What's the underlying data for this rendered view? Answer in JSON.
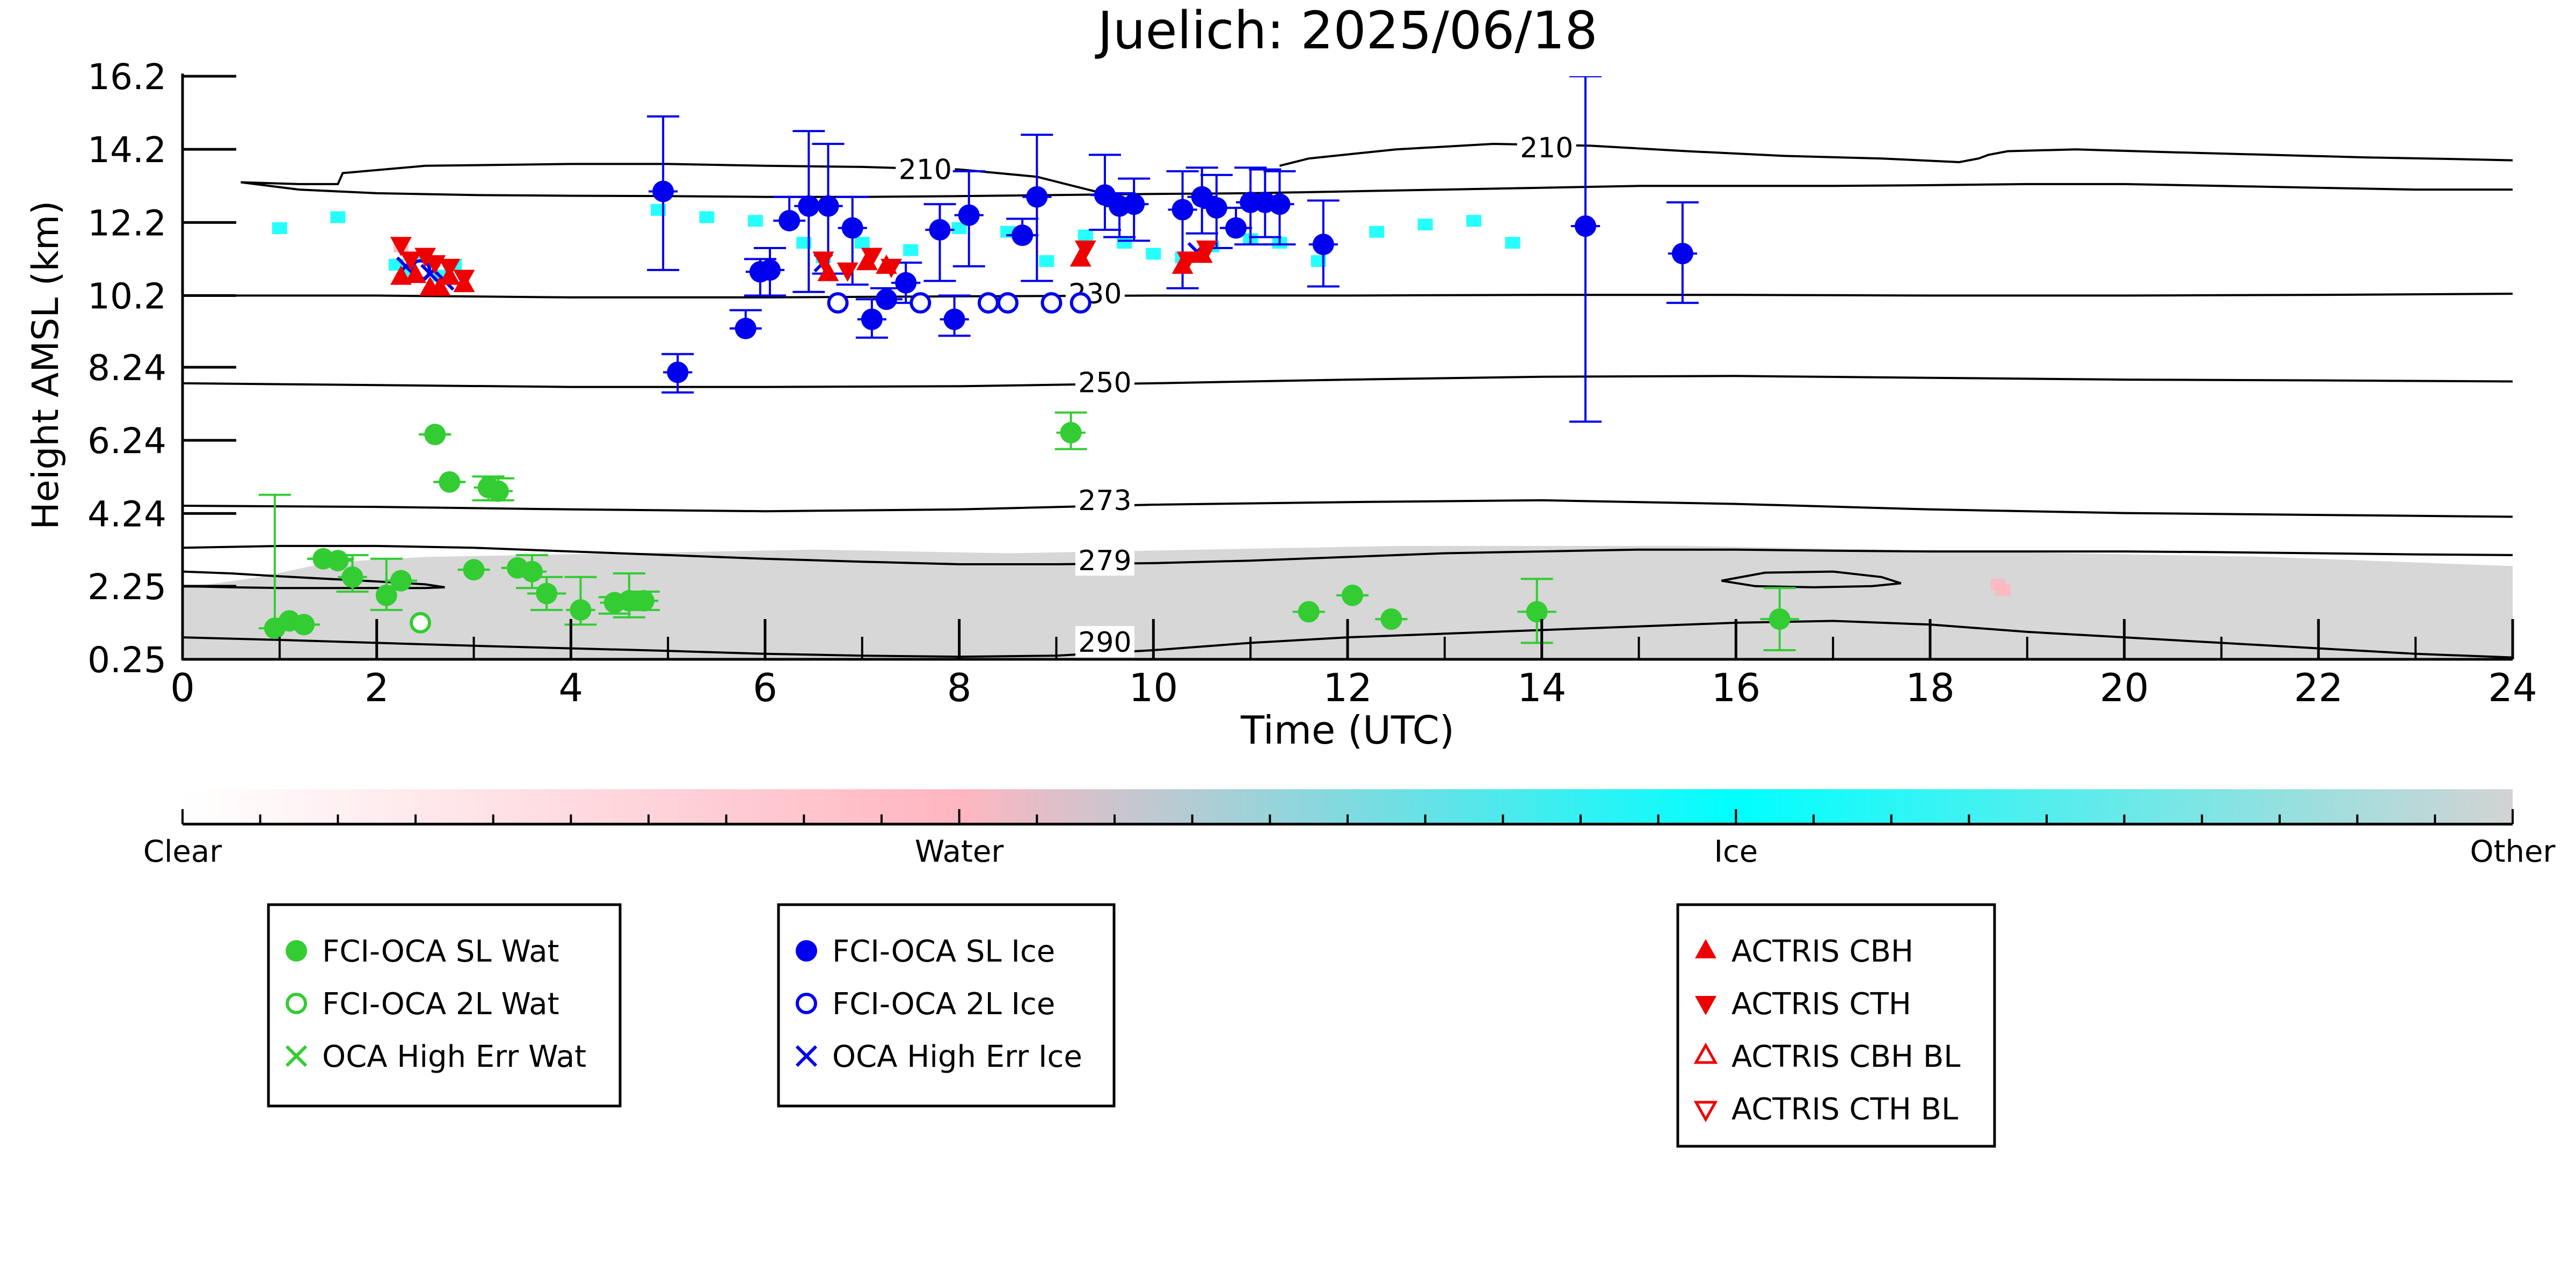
{
  "chart_data": {
    "type": "scatter",
    "title": "Juelich: 2025/06/18",
    "xlabel": "Time (UTC)",
    "ylabel": "Height AMSL (km)",
    "xlim": [
      0,
      24
    ],
    "ylim": [
      0.25,
      16.2
    ],
    "x_ticks": [
      0,
      2,
      4,
      6,
      8,
      10,
      12,
      14,
      16,
      18,
      20,
      22,
      24
    ],
    "x_tick_labels": [
      "0",
      "2",
      "4",
      "6",
      "8",
      "10",
      "12",
      "14",
      "16",
      "18",
      "20",
      "22",
      "24"
    ],
    "y_ticks": [
      0.25,
      2.25,
      4.24,
      6.24,
      8.24,
      10.2,
      12.2,
      14.2,
      16.2
    ],
    "y_tick_labels": [
      "0.25",
      "2.25",
      "4.24",
      "6.24",
      "8.24",
      "10.2",
      "12.2",
      "14.2",
      "16.2"
    ],
    "grid": false,
    "colorbar": {
      "labels": [
        "Clear",
        "Water",
        "Ice",
        "Other"
      ],
      "colors": [
        "#ffffff",
        "#ffb6c1",
        "#00ffff",
        "#d3d3d3"
      ]
    },
    "legends": [
      {
        "entries": [
          {
            "label": "FCI-OCA SL Wat",
            "marker": "filled-circle",
            "color": "#33cc33"
          },
          {
            "label": "FCI-OCA 2L Wat",
            "marker": "open-circle",
            "color": "#33cc33"
          },
          {
            "label": "OCA High Err Wat",
            "marker": "x",
            "color": "#33cc33"
          }
        ]
      },
      {
        "entries": [
          {
            "label": "FCI-OCA SL Ice",
            "marker": "filled-circle",
            "color": "#0000ee"
          },
          {
            "label": "FCI-OCA 2L Ice",
            "marker": "open-circle",
            "color": "#0000ee"
          },
          {
            "label": "OCA High Err Ice",
            "marker": "x",
            "color": "#0000ee"
          }
        ]
      },
      {
        "entries": [
          {
            "label": "ACTRIS CBH",
            "marker": "triangle-up",
            "color": "#ee0000"
          },
          {
            "label": "ACTRIS CTH",
            "marker": "triangle-down",
            "color": "#ee0000"
          },
          {
            "label": "ACTRIS CBH BL",
            "marker": "open-triangle-up",
            "color": "#ee0000"
          },
          {
            "label": "ACTRIS CTH BL",
            "marker": "open-triangle-down",
            "color": "#ee0000"
          }
        ]
      }
    ],
    "contours": [
      {
        "label": "210",
        "label_x": 7.65,
        "label_y": 13.65,
        "x": [
          0.6,
          1.2,
          1.6,
          1.65,
          2.5,
          4,
          5,
          6,
          7,
          7.5,
          8,
          8.8,
          9.1,
          9.4,
          9.6
        ],
        "y": [
          13.3,
          13.25,
          13.25,
          13.55,
          13.75,
          13.8,
          13.8,
          13.75,
          13.72,
          13.68,
          13.65,
          13.45,
          13.25,
          13.05,
          12.95
        ]
      },
      {
        "label": "",
        "label_x": 0,
        "label_y": 0,
        "x": [
          0.6,
          1.2,
          2,
          3,
          4,
          5,
          6,
          7,
          8,
          9,
          10,
          11,
          12,
          13,
          14,
          15,
          16,
          17,
          18,
          19,
          20,
          21,
          22,
          23,
          24
        ],
        "y": [
          13.3,
          13.1,
          13.0,
          12.95,
          12.93,
          12.92,
          12.9,
          12.9,
          12.92,
          12.95,
          12.98,
          13.0,
          13.05,
          13.1,
          13.15,
          13.2,
          13.2,
          13.2,
          13.22,
          13.25,
          13.25,
          13.2,
          13.15,
          13.1,
          13.1
        ]
      },
      {
        "label": "210",
        "label_x": 14.05,
        "label_y": 14.25,
        "x": [
          11.3,
          11.6,
          12.5,
          13.5,
          14.5,
          15.5,
          16.5,
          17.5,
          18.3,
          18.5,
          18.6,
          18.8,
          19.5,
          20.5,
          21.5,
          22.5,
          23.5,
          24
        ],
        "y": [
          13.75,
          13.95,
          14.2,
          14.35,
          14.3,
          14.15,
          14.02,
          13.95,
          13.85,
          13.95,
          14.05,
          14.15,
          14.2,
          14.12,
          14.05,
          13.98,
          13.93,
          13.9
        ]
      },
      {
        "label": "230",
        "label_x": 9.4,
        "label_y": 10.25,
        "x": [
          0,
          2,
          4,
          6,
          8,
          10,
          12,
          14,
          16,
          18,
          20,
          22,
          24
        ],
        "y": [
          10.2,
          10.2,
          10.15,
          10.15,
          10.18,
          10.2,
          10.2,
          10.22,
          10.22,
          10.2,
          10.2,
          10.22,
          10.25
        ]
      },
      {
        "label": "250",
        "label_x": 9.5,
        "label_y": 7.82,
        "x": [
          0,
          2,
          4,
          6,
          8,
          10,
          12,
          14,
          16,
          18,
          20,
          22,
          24
        ],
        "y": [
          7.8,
          7.75,
          7.7,
          7.7,
          7.72,
          7.8,
          7.9,
          7.98,
          8.0,
          7.95,
          7.9,
          7.88,
          7.85
        ]
      },
      {
        "label": "273",
        "label_x": 9.5,
        "label_y": 4.6,
        "x": [
          0,
          2,
          4,
          6,
          8,
          10,
          12,
          14,
          16,
          18,
          20,
          22,
          24
        ],
        "y": [
          4.45,
          4.42,
          4.35,
          4.3,
          4.35,
          4.48,
          4.55,
          4.6,
          4.5,
          4.35,
          4.25,
          4.2,
          4.15
        ]
      },
      {
        "label": "279",
        "label_x": 9.5,
        "label_y": 2.95,
        "x": [
          0,
          1,
          2,
          3,
          4,
          5,
          6,
          7,
          8,
          9,
          10,
          11,
          12,
          13,
          14,
          15,
          16,
          17,
          18,
          19,
          20,
          21,
          22,
          23,
          24
        ],
        "y": [
          3.3,
          3.35,
          3.35,
          3.3,
          3.2,
          3.1,
          3.0,
          2.92,
          2.85,
          2.85,
          2.88,
          2.95,
          3.05,
          3.15,
          3.2,
          3.25,
          3.25,
          3.22,
          3.2,
          3.2,
          3.2,
          3.18,
          3.15,
          3.12,
          3.1
        ]
      },
      {
        "label": "",
        "label_x": 0,
        "label_y": 0,
        "x": [
          0,
          0.5,
          1,
          1.5,
          2,
          2.5,
          2.7,
          2.5,
          2,
          1.5,
          1,
          0.5,
          0
        ],
        "y": [
          2.65,
          2.6,
          2.52,
          2.45,
          2.38,
          2.3,
          2.22,
          2.2,
          2.2,
          2.2,
          2.2,
          2.22,
          2.25
        ]
      },
      {
        "label": "",
        "label_x": 0,
        "label_y": 0,
        "x": [
          15.85,
          16.3,
          17.0,
          17.5,
          17.7,
          17.4,
          16.8,
          16.2,
          15.85
        ],
        "y": [
          2.4,
          2.62,
          2.65,
          2.5,
          2.33,
          2.25,
          2.22,
          2.25,
          2.4
        ]
      },
      {
        "label": "290",
        "label_x": 9.5,
        "label_y": 0.72,
        "x": [
          0,
          1,
          2,
          3,
          4,
          5,
          6,
          7,
          8,
          9,
          10,
          11,
          12,
          13,
          14,
          15,
          16,
          17,
          18,
          19,
          20,
          21,
          22,
          23,
          24
        ],
        "y": [
          0.85,
          0.78,
          0.7,
          0.62,
          0.55,
          0.48,
          0.4,
          0.35,
          0.32,
          0.35,
          0.5,
          0.7,
          0.85,
          0.95,
          1.05,
          1.15,
          1.25,
          1.3,
          1.2,
          1.0,
          0.85,
          0.7,
          0.55,
          0.4,
          0.3
        ]
      }
    ],
    "classification_regions": [
      {
        "class": "Other",
        "color": "#d3d3d3",
        "kind": "band",
        "x": [
          0.0,
          0.8,
          1.5,
          2.5,
          3.5,
          4.5,
          5.5,
          6.5,
          7.5,
          8.5,
          9.5,
          10.5,
          11.5,
          12.5,
          13.5,
          14.5,
          15.5,
          16.5,
          17.5,
          18.5,
          19.5,
          20.5,
          21.5,
          22.5,
          23.5,
          24.0
        ],
        "y_top": [
          2.2,
          2.5,
          2.9,
          3.05,
          3.1,
          3.15,
          3.2,
          3.25,
          3.2,
          3.15,
          3.2,
          3.25,
          3.3,
          3.35,
          3.35,
          3.35,
          3.35,
          3.3,
          3.25,
          3.2,
          3.15,
          3.1,
          3.05,
          2.95,
          2.85,
          2.8
        ]
      },
      {
        "class": "Ice",
        "color": "#00ffff",
        "kind": "patches",
        "x": [
          1.0,
          1.6,
          2.2,
          2.35,
          2.5,
          2.65,
          2.8,
          4.9,
          5.4,
          5.9,
          6.4,
          6.6,
          7.0,
          7.5,
          8.0,
          8.5,
          8.9,
          9.3,
          9.7,
          10.0,
          10.3,
          10.6,
          11.0,
          11.3,
          11.7,
          12.3,
          12.8,
          13.3,
          13.7
        ],
        "y": [
          12.0,
          12.3,
          11.0,
          10.8,
          11.3,
          10.7,
          11.0,
          12.5,
          12.3,
          12.2,
          11.6,
          11.2,
          11.6,
          11.4,
          12.0,
          11.9,
          11.1,
          11.8,
          11.6,
          11.3,
          11.2,
          11.5,
          11.7,
          11.6,
          11.1,
          11.9,
          12.1,
          12.2,
          11.6
        ]
      },
      {
        "class": "Water",
        "color": "#ffb6c1",
        "kind": "patches",
        "x": [
          18.7,
          18.75,
          2.25
        ],
        "y": [
          2.25,
          2.1,
          11.5
        ]
      }
    ],
    "series": [
      {
        "name": "FCI-OCA SL Wat",
        "marker": "filled-circle",
        "color": "#33cc33",
        "x": [
          0.95,
          1.1,
          1.25,
          1.45,
          1.6,
          1.75,
          2.1,
          2.25,
          2.6,
          2.75,
          3.0,
          3.15,
          3.25,
          3.45,
          3.6,
          3.75,
          4.1,
          4.45,
          4.6,
          4.75,
          9.15,
          11.6,
          12.05,
          12.45,
          13.95,
          16.45
        ],
        "y": [
          1.1,
          1.3,
          1.2,
          3.0,
          2.95,
          2.5,
          2.0,
          2.4,
          6.4,
          5.1,
          2.7,
          4.95,
          4.85,
          2.75,
          2.65,
          2.05,
          1.6,
          1.8,
          1.85,
          1.85,
          6.45,
          1.55,
          2.0,
          1.35,
          1.55,
          1.35
        ],
        "yerr_low": [
          1.1,
          1.25,
          1.2,
          3.0,
          3.0,
          2.1,
          1.6,
          2.4,
          6.4,
          5.1,
          2.7,
          4.6,
          4.6,
          2.75,
          2.2,
          1.6,
          1.2,
          1.5,
          1.4,
          1.6,
          6.0,
          1.55,
          2.0,
          1.35,
          0.7,
          0.5
        ],
        "yerr_high": [
          4.75,
          1.35,
          1.2,
          3.0,
          3.1,
          3.1,
          3.0,
          2.4,
          6.4,
          5.1,
          2.7,
          5.25,
          5.2,
          2.75,
          3.1,
          2.5,
          2.5,
          1.95,
          2.6,
          2.1,
          7.0,
          1.55,
          2.0,
          1.35,
          2.45,
          2.2
        ],
        "xerr": [
          0.08,
          0.08,
          0.08,
          0.15,
          0.15,
          0.15,
          0.1,
          0.08,
          0.15,
          0.15,
          0.12,
          0.15,
          0.15,
          0.15,
          0.15,
          0.2,
          0.15,
          0.15,
          0.15,
          0.15,
          0.15,
          0.15,
          0.15,
          0.15,
          0.2,
          0.2
        ]
      },
      {
        "name": "FCI-OCA 2L Wat",
        "marker": "open-circle",
        "color": "#33cc33",
        "x": [
          2.45
        ],
        "y": [
          1.25
        ]
      },
      {
        "name": "FCI-OCA SL Ice",
        "marker": "filled-circle",
        "color": "#0000ee",
        "x": [
          4.95,
          5.1,
          5.8,
          5.95,
          6.05,
          6.25,
          6.45,
          6.65,
          6.9,
          7.1,
          7.25,
          7.45,
          7.8,
          7.95,
          8.1,
          8.65,
          8.8,
          9.5,
          9.65,
          9.8,
          10.3,
          10.5,
          10.65,
          10.85,
          11.0,
          11.15,
          11.3,
          11.75,
          14.45,
          15.45
        ],
        "y": [
          13.05,
          8.1,
          9.3,
          10.85,
          10.9,
          12.25,
          12.65,
          12.65,
          12.05,
          9.55,
          10.1,
          10.55,
          12.0,
          9.55,
          12.4,
          11.85,
          12.9,
          12.95,
          12.65,
          12.7,
          12.55,
          12.9,
          12.6,
          12.05,
          12.75,
          12.75,
          12.7,
          11.6,
          12.1,
          11.35
        ],
        "yerr_low": [
          10.9,
          7.55,
          9.3,
          10.2,
          10.2,
          12.25,
          10.3,
          10.8,
          10.5,
          9.05,
          10.1,
          10.0,
          10.6,
          9.1,
          11.0,
          11.85,
          10.6,
          12.0,
          11.8,
          11.7,
          10.4,
          11.9,
          11.5,
          12.05,
          11.6,
          11.8,
          11.6,
          10.45,
          6.75,
          10.0
        ],
        "yerr_high": [
          15.1,
          8.6,
          9.8,
          11.2,
          11.5,
          12.9,
          14.7,
          14.35,
          12.9,
          10.1,
          10.4,
          11.1,
          12.7,
          10.2,
          13.6,
          12.3,
          14.6,
          14.05,
          13.0,
          13.4,
          13.6,
          13.7,
          13.5,
          12.6,
          13.7,
          13.65,
          13.6,
          12.8,
          16.2,
          12.75
        ],
        "xerr": [
          0.15,
          0.15,
          0.15,
          0.15,
          0.15,
          0.15,
          0.15,
          0.15,
          0.15,
          0.15,
          0.15,
          0.15,
          0.15,
          0.15,
          0.15,
          0.15,
          0.15,
          0.15,
          0.15,
          0.15,
          0.15,
          0.15,
          0.15,
          0.15,
          0.15,
          0.15,
          0.15,
          0.15,
          0.15,
          0.15
        ]
      },
      {
        "name": "FCI-OCA 2L Ice",
        "marker": "open-circle",
        "color": "#0000ee",
        "x": [
          2.45,
          6.75,
          7.6,
          8.3,
          8.5,
          8.95,
          9.25
        ],
        "y": [
          10.9,
          10.0,
          10.0,
          10.0,
          10.0,
          10.0,
          10.0
        ]
      },
      {
        "name": "OCA High Err Ice",
        "marker": "x",
        "color": "#0000ee",
        "x": [
          2.3,
          2.55,
          2.7,
          6.6,
          10.45
        ],
        "y": [
          11.0,
          10.8,
          10.6,
          11.1,
          11.4
        ]
      },
      {
        "name": "ACTRIS CBH",
        "marker": "triangle-up",
        "color": "#ee0000",
        "x": [
          2.25,
          2.4,
          2.55,
          2.65,
          2.75,
          2.9,
          6.65,
          7.05,
          7.25,
          9.25,
          10.3,
          10.5
        ],
        "y": [
          10.7,
          10.75,
          10.4,
          10.4,
          10.7,
          10.5,
          10.8,
          11.1,
          11.0,
          11.2,
          11.0,
          11.3
        ]
      },
      {
        "name": "ACTRIS CTH",
        "marker": "triangle-down",
        "color": "#ee0000",
        "x": [
          2.25,
          2.35,
          2.5,
          2.6,
          2.75,
          2.9,
          6.6,
          6.85,
          7.1,
          7.3,
          9.3,
          10.35,
          10.55
        ],
        "y": [
          11.6,
          11.2,
          11.3,
          11.1,
          11.0,
          10.7,
          11.2,
          10.9,
          11.3,
          11.0,
          11.5,
          11.2,
          11.5
        ]
      }
    ]
  }
}
